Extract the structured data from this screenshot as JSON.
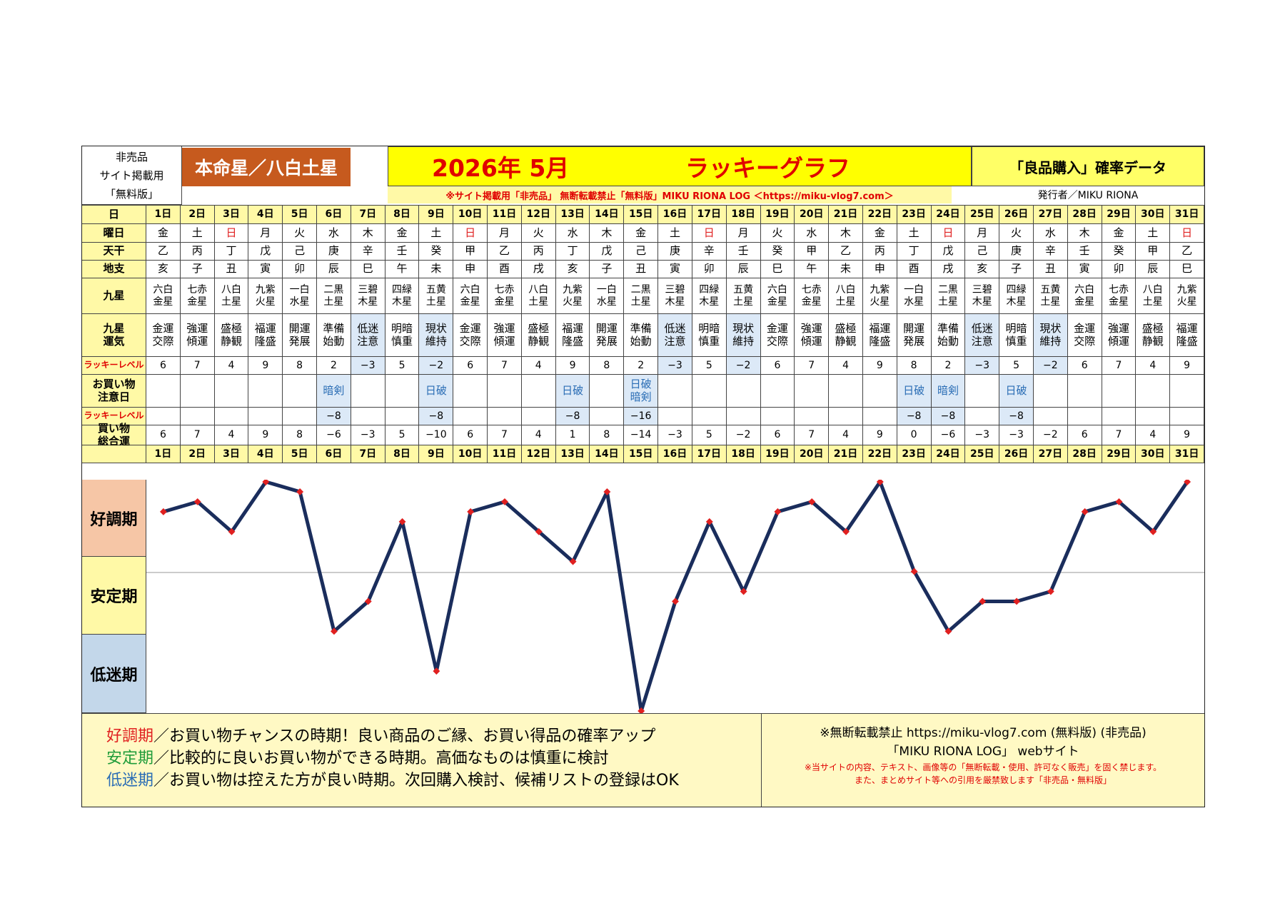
{
  "header": {
    "note_lines": [
      "非売品",
      "サイト掲載用",
      "「無料版」"
    ],
    "honmei": "本命星／八白土星",
    "year_month": "2026年 5月",
    "graph_title": "ラッキーグラフ",
    "data_label": "「良品購入」確率データ",
    "notice": "※サイト掲載用「非売品」 無断転載禁止「無料版」MIKU RIONA LOG ＜https://miku-vlog7.com＞",
    "publisher": "発行者／MIKU RIONA"
  },
  "row_labels": {
    "day": "日",
    "weekday": "曜日",
    "stem": "天干",
    "branch": "地支",
    "star": "九星",
    "fortune": "九星\n運気",
    "lucky_level": "ラッキーレベル",
    "caution": "お買い物\n注意日",
    "lucky_level2": "ラッキーレベル",
    "total": "買い物\n総合運"
  },
  "colors": {
    "line": "#1a2d5c",
    "marker": "#e02020",
    "sunday": "#e02020",
    "good_band": "#f6c6a6",
    "stable_band": "#fff9a6",
    "low_band": "#c3d7ea",
    "highlight_cell": "#dce9f7",
    "title_red": "#e00000",
    "honmei_bg": "#c65a1e"
  },
  "days": [
    "1日",
    "2日",
    "3日",
    "4日",
    "5日",
    "6日",
    "7日",
    "8日",
    "9日",
    "10日",
    "11日",
    "12日",
    "13日",
    "14日",
    "15日",
    "16日",
    "17日",
    "18日",
    "19日",
    "20日",
    "21日",
    "22日",
    "23日",
    "24日",
    "25日",
    "26日",
    "27日",
    "28日",
    "29日",
    "30日",
    "31日"
  ],
  "weekdays": [
    "金",
    "土",
    "日",
    "月",
    "火",
    "水",
    "木",
    "金",
    "土",
    "日",
    "月",
    "火",
    "水",
    "木",
    "金",
    "土",
    "日",
    "月",
    "火",
    "水",
    "木",
    "金",
    "土",
    "日",
    "月",
    "火",
    "水",
    "木",
    "金",
    "土",
    "日"
  ],
  "stems": [
    "乙",
    "丙",
    "丁",
    "戊",
    "己",
    "庚",
    "辛",
    "壬",
    "癸",
    "甲",
    "乙",
    "丙",
    "丁",
    "戊",
    "己",
    "庚",
    "辛",
    "壬",
    "癸",
    "甲",
    "乙",
    "丙",
    "丁",
    "戊",
    "己",
    "庚",
    "辛",
    "壬",
    "癸",
    "甲",
    "乙"
  ],
  "branches": [
    "亥",
    "子",
    "丑",
    "寅",
    "卯",
    "辰",
    "巳",
    "午",
    "未",
    "申",
    "酉",
    "戌",
    "亥",
    "子",
    "丑",
    "寅",
    "卯",
    "辰",
    "巳",
    "午",
    "未",
    "申",
    "酉",
    "戌",
    "亥",
    "子",
    "丑",
    "寅",
    "卯",
    "辰",
    "巳"
  ],
  "stars": [
    "六白\n金星",
    "七赤\n金星",
    "八白\n土星",
    "九紫\n火星",
    "一白\n水星",
    "二黒\n土星",
    "三碧\n木星",
    "四緑\n木星",
    "五黄\n土星",
    "六白\n金星",
    "七赤\n金星",
    "八白\n土星",
    "九紫\n火星",
    "一白\n水星",
    "二黒\n土星",
    "三碧\n木星",
    "四緑\n木星",
    "五黄\n土星",
    "六白\n金星",
    "七赤\n金星",
    "八白\n土星",
    "九紫\n火星",
    "一白\n水星",
    "二黒\n土星",
    "三碧\n木星",
    "四緑\n木星",
    "五黄\n土星",
    "六白\n金星",
    "七赤\n金星",
    "八白\n土星",
    "九紫\n火星"
  ],
  "fortunes": [
    "金運\n交際",
    "強運\n傾運",
    "盛極\n静観",
    "福運\n隆盛",
    "開運\n発展",
    "準備\n始動",
    "低迷\n注意",
    "明暗\n慎重",
    "現状\n維持",
    "金運\n交際",
    "強運\n傾運",
    "盛極\n静観",
    "福運\n隆盛",
    "開運\n発展",
    "準備\n始動",
    "低迷\n注意",
    "明暗\n慎重",
    "現状\n維持",
    "金運\n交際",
    "強運\n傾運",
    "盛極\n静観",
    "福運\n隆盛",
    "開運\n発展",
    "準備\n始動",
    "低迷\n注意",
    "明暗\n慎重",
    "現状\n維持",
    "金運\n交際",
    "強運\n傾運",
    "盛極\n静観",
    "福運\n隆盛"
  ],
  "lucky_levels": [
    "6",
    "7",
    "4",
    "9",
    "8",
    "2",
    "−3",
    "5",
    "−2",
    "6",
    "7",
    "4",
    "9",
    "8",
    "2",
    "−3",
    "5",
    "−2",
    "6",
    "7",
    "4",
    "9",
    "8",
    "2",
    "−3",
    "5",
    "−2",
    "6",
    "7",
    "4",
    "9"
  ],
  "cautions": [
    "",
    "",
    "",
    "",
    "",
    "暗剣",
    "",
    "",
    "日破",
    "",
    "",
    "",
    "日破",
    "",
    "日破\n暗剣",
    "",
    "",
    "",
    "",
    "",
    "",
    "",
    "日破",
    "暗剣",
    "",
    "日破",
    "",
    "",
    "",
    "",
    ""
  ],
  "caution_levels": [
    "",
    "",
    "",
    "",
    "",
    "−8",
    "",
    "",
    "−8",
    "",
    "",
    "",
    "−8",
    "",
    "−16",
    "",
    "",
    "",
    "",
    "",
    "",
    "",
    "−8",
    "−8",
    "",
    "−8",
    "",
    "",
    "",
    "",
    ""
  ],
  "totals": [
    "6",
    "7",
    "4",
    "9",
    "8",
    "−6",
    "−3",
    "5",
    "−10",
    "6",
    "7",
    "4",
    "1",
    "8",
    "−14",
    "−3",
    "5",
    "−2",
    "6",
    "7",
    "4",
    "9",
    "0",
    "−6",
    "−3",
    "−3",
    "−2",
    "6",
    "7",
    "4",
    "9"
  ],
  "chart_data": {
    "type": "line",
    "categories": [
      "1日",
      "2日",
      "3日",
      "4日",
      "5日",
      "6日",
      "7日",
      "8日",
      "9日",
      "10日",
      "11日",
      "12日",
      "13日",
      "14日",
      "15日",
      "16日",
      "17日",
      "18日",
      "19日",
      "20日",
      "21日",
      "22日",
      "23日",
      "24日",
      "25日",
      "26日",
      "27日",
      "28日",
      "29日",
      "30日",
      "31日"
    ],
    "values": [
      6,
      7,
      4,
      9,
      8,
      -6,
      -3,
      5,
      -10,
      6,
      7,
      4,
      1,
      8,
      -14,
      -3,
      5,
      -2,
      6,
      7,
      4,
      9,
      0,
      -6,
      -3,
      -3,
      -2,
      6,
      7,
      4,
      9
    ],
    "ylim": [
      -14,
      9
    ],
    "bands": [
      "好調期",
      "安定期",
      "低迷期"
    ],
    "grid": false
  },
  "legend": {
    "good_term": "好調期",
    "good_text": "／お買い物チャンスの時期！良い商品のご縁、お買い得品の確率アップ",
    "stable_term": "安定期",
    "stable_text": "／比較的に良いお買い物ができる時期。高価なものは慎重に検討",
    "low_term": "低迷期",
    "low_text": "／お買い物は控えた方が良い時期。次回購入検討、候補リストの登録はOK"
  },
  "footer": {
    "line1": "※無断転載禁止 https://miku-vlog7.com (無料版) (非売品)",
    "line2": "「MIKU RIONA LOG」 webサイト",
    "line3": "※当サイトの内容、テキスト、画像等の「無断転載・使用、許可なく販売」を固く禁じます。",
    "line4": "また、まとめサイト等への引用を厳禁致します「非売品・無料版」"
  }
}
